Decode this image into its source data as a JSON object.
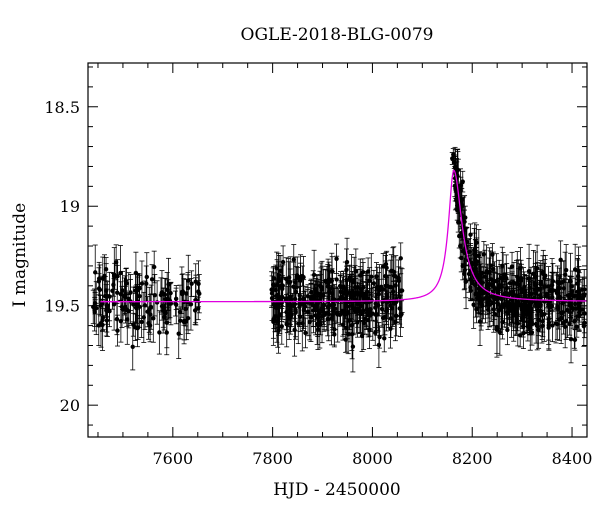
{
  "chart_data": {
    "type": "scatter",
    "title": "OGLE-2018-BLG-0079",
    "xlabel": "HJD - 2450000",
    "ylabel": "I magnitude",
    "xlim": [
      7430,
      8430
    ],
    "ylim": [
      20.16,
      18.28
    ],
    "y_inverted": true,
    "grid": false,
    "xticks": [
      7600,
      7800,
      8000,
      8200,
      8400
    ],
    "xtick_labels": [
      "7600",
      "7800",
      "8000",
      "8200",
      "8400"
    ],
    "yticks": [
      18.5,
      19,
      19.5,
      20
    ],
    "ytick_labels": [
      "18.5",
      "19",
      "19.5",
      "20"
    ],
    "colors": {
      "points": "#000000",
      "model": "#e000e0",
      "axes": "#000000"
    },
    "model": {
      "name": "",
      "baseline": 19.48,
      "peak_x": 8163,
      "peak_mag": 18.82,
      "rise_width": 13,
      "decay_width": 20
    },
    "series": [
      {
        "name": "",
        "segments": [
          {
            "x_start": 7440,
            "x_end": 7655,
            "count": 140
          },
          {
            "x_start": 7795,
            "x_end": 8060,
            "count": 330
          },
          {
            "x_start": 8165,
            "x_end": 8425,
            "count": 380
          }
        ],
        "seed": 20180079,
        "scatter_mag": 0.14,
        "error_min": 0.05,
        "error_max": 0.14,
        "peak_points": [
          {
            "x": 8160,
            "y": 18.76,
            "err": 0.03
          },
          {
            "x": 8162,
            "y": 18.74,
            "err": 0.03
          },
          {
            "x": 8164,
            "y": 18.78,
            "err": 0.03
          },
          {
            "x": 8165,
            "y": 18.83,
            "err": 0.03
          },
          {
            "x": 8166,
            "y": 18.86,
            "err": 0.04
          },
          {
            "x": 8167,
            "y": 18.92,
            "err": 0.04
          },
          {
            "x": 8168,
            "y": 18.97,
            "err": 0.04
          },
          {
            "x": 8170,
            "y": 19.02,
            "err": 0.05
          },
          {
            "x": 8172,
            "y": 19.08,
            "err": 0.05
          },
          {
            "x": 8174,
            "y": 19.15,
            "err": 0.06
          },
          {
            "x": 8176,
            "y": 19.2,
            "err": 0.06
          },
          {
            "x": 8178,
            "y": 19.26,
            "err": 0.07
          },
          {
            "x": 8181,
            "y": 19.3,
            "err": 0.07
          },
          {
            "x": 8184,
            "y": 19.34,
            "err": 0.08
          },
          {
            "x": 8187,
            "y": 19.38,
            "err": 0.08
          }
        ]
      }
    ]
  }
}
